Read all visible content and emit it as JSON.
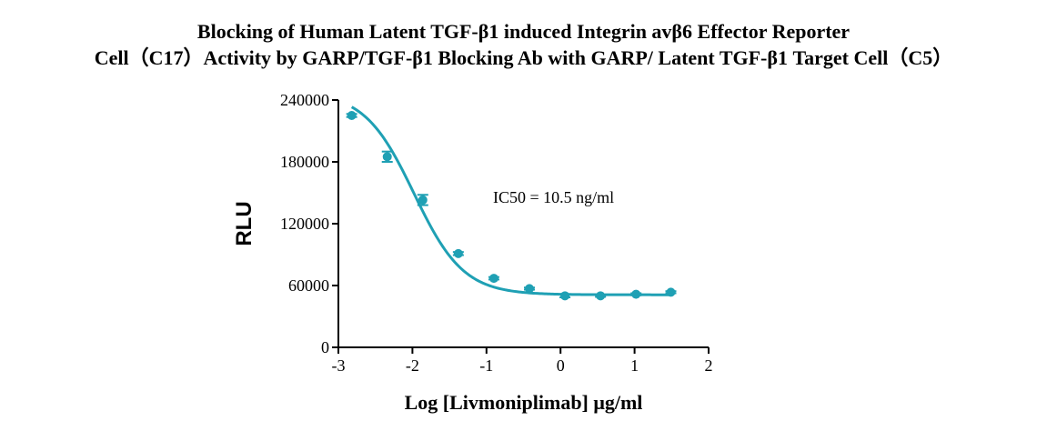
{
  "chart_data": {
    "type": "scatter",
    "title_lines": [
      "Blocking of Human Latent TGF-β1 induced Integrin avβ6 Effector Reporter",
      "Cell（C17）Activity by GARP/TGF-β1 Blocking Ab with GARP/ Latent TGF-β1 Target Cell（C5）"
    ],
    "xlabel": "Log [Livmoniplimab] μg/ml",
    "ylabel": "RLU",
    "xlim": [
      -3,
      2
    ],
    "ylim": [
      0,
      240000
    ],
    "x_ticks": [
      -3,
      -2,
      -1,
      0,
      1,
      2
    ],
    "y_ticks": [
      0,
      60000,
      120000,
      180000,
      240000
    ],
    "color": "#1fa0b4",
    "annotation": "IC50 = 10.5 ng/ml",
    "points": [
      {
        "x": -2.82,
        "y": 225000,
        "err": 1500
      },
      {
        "x": -2.34,
        "y": 185000,
        "err": 5000
      },
      {
        "x": -1.86,
        "y": 143000,
        "err": 5000
      },
      {
        "x": -1.38,
        "y": 91000,
        "err": 1500
      },
      {
        "x": -0.9,
        "y": 67000,
        "err": 1200
      },
      {
        "x": -0.42,
        "y": 57000,
        "err": 1000
      },
      {
        "x": 0.06,
        "y": 50000,
        "err": 1500
      },
      {
        "x": 0.54,
        "y": 50000,
        "err": 1000
      },
      {
        "x": 1.02,
        "y": 51500,
        "err": 1000
      },
      {
        "x": 1.49,
        "y": 53500,
        "err": 1000
      }
    ],
    "fit_curve": {
      "top": 248000,
      "bottom": 51000,
      "log_ic50": -1.98,
      "hill": 1.3,
      "x_range": [
        -2.82,
        1.49
      ]
    },
    "grid": false,
    "legend": "none"
  }
}
